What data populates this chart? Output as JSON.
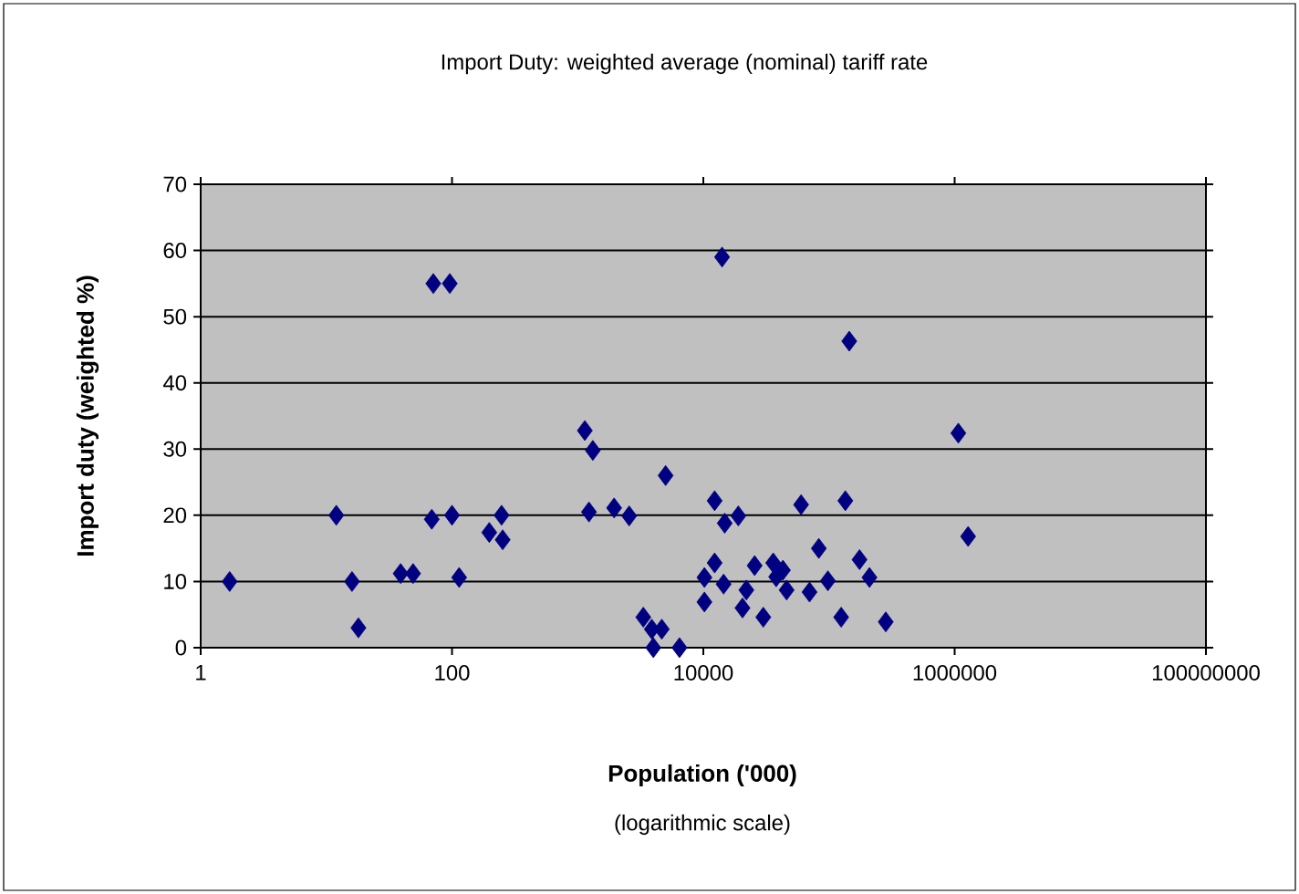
{
  "chart_data": {
    "type": "scatter",
    "title": "Import Duty: weighted average (nominal) tariff rate",
    "xlabel": "Population ('000)",
    "ylabel": "Import duty (weighted %)",
    "annotations": [
      "(logarithmic scale)"
    ],
    "log": "x",
    "grid": "y",
    "marker": "diamond",
    "xlim": [
      1,
      100000000
    ],
    "xticks": [
      1,
      100,
      10000,
      1000000,
      100000000
    ],
    "ylim": [
      0,
      70
    ],
    "yticks": [
      0,
      10,
      20,
      30,
      40,
      50,
      60,
      70
    ],
    "series": [
      {
        "color": "#000080",
        "x": [
          1.7,
          12,
          16,
          18,
          39,
          49,
          71,
          96,
          69,
          100,
          114,
          198,
          248,
          253,
          1140,
          1320,
          1230,
          1950,
          2570,
          5010,
          3330,
          3890,
          4670,
          4000,
          6460,
          10200,
          10200,
          12300,
          12300,
          14500,
          14100,
          14800,
          145000,
          1070000,
          1280000,
          135000,
          60000,
          19000,
          83000,
          175000,
          210000,
          98000,
          70000,
          125000,
          283000,
          25600,
          36000,
          43000,
          38000,
          46000,
          22000,
          20500,
          30000
        ],
        "values": [
          10,
          20,
          10,
          3,
          11.2,
          11.2,
          55,
          55,
          19.4,
          20,
          10.6,
          17.4,
          20,
          16.3,
          32.8,
          29.8,
          20.5,
          21.1,
          19.9,
          26,
          4.6,
          2.8,
          2.8,
          0,
          0,
          6.9,
          10.6,
          22.2,
          12.8,
          9.6,
          59,
          18.8,
          46.3,
          32.4,
          16.8,
          22.2,
          21.6,
          19.9,
          15,
          13.3,
          10.6,
          10.1,
          8.4,
          4.6,
          3.9,
          12.4,
          12.8,
          11.7,
          10.7,
          8.7,
          8.7,
          6,
          4.6
        ]
      }
    ]
  }
}
